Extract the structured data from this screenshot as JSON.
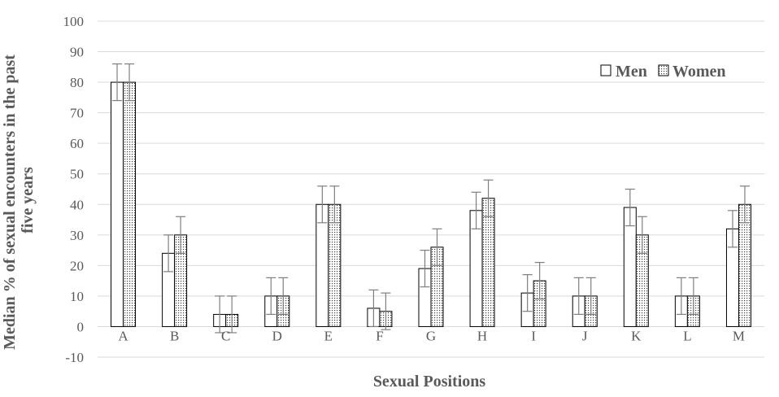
{
  "chart_data": {
    "type": "bar",
    "xlabel": "Sexual Positions",
    "ylabel_lines": [
      "Median  % of sexual encounters in the past",
      "five years"
    ],
    "ylim": [
      -10,
      100
    ],
    "yticks": [
      -10,
      0,
      10,
      20,
      30,
      40,
      50,
      60,
      70,
      80,
      90,
      100
    ],
    "categories": [
      "A",
      "B",
      "C",
      "D",
      "E",
      "F",
      "G",
      "H",
      "I",
      "J",
      "K",
      "L",
      "M"
    ],
    "series": [
      {
        "name": "Men",
        "values": [
          80,
          24,
          4,
          10,
          40,
          6,
          19,
          38,
          11,
          10,
          39,
          10,
          32
        ],
        "error": [
          6,
          6,
          6,
          6,
          6,
          6,
          6,
          6,
          6,
          6,
          6,
          6,
          6
        ]
      },
      {
        "name": "Women",
        "values": [
          80,
          30,
          4,
          10,
          40,
          5,
          26,
          42,
          15,
          10,
          30,
          10,
          40
        ],
        "error": [
          6,
          6,
          6,
          6,
          6,
          6,
          6,
          6,
          6,
          6,
          6,
          6,
          6
        ]
      }
    ],
    "grid": true,
    "legend_position": "top-right"
  }
}
